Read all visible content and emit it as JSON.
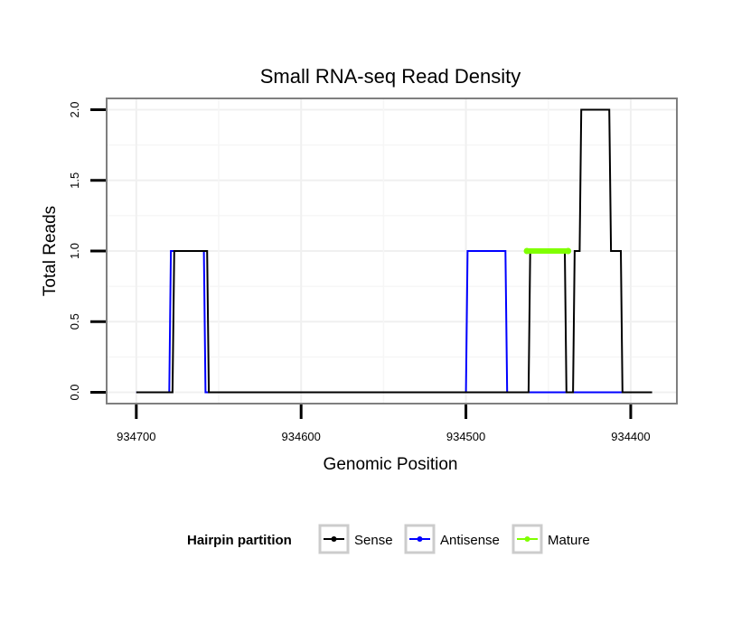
{
  "chart_data": {
    "type": "line",
    "title": "Small RNA-seq Read Density",
    "xlabel": "Genomic Position",
    "ylabel": "Total Reads",
    "xlim": [
      934718,
      934372
    ],
    "ylim": [
      -0.08,
      2.08
    ],
    "x_reversed": true,
    "grid": true,
    "x_ticks": [
      934700,
      934600,
      934500,
      934400
    ],
    "x_tick_labels": [
      "934700",
      "934600",
      "934500",
      "934400"
    ],
    "y_ticks": [
      0,
      0.5,
      1,
      1.5,
      2
    ],
    "y_tick_labels": [
      "0.0",
      "0.5",
      "1.0",
      "1.5",
      "2.0"
    ],
    "legend": {
      "title": "Hairpin partition",
      "position": "bottom",
      "entries": [
        {
          "label": "Sense",
          "color": "#000000"
        },
        {
          "label": "Antisense",
          "color": "#0000ff"
        },
        {
          "label": "Mature",
          "color": "#80ff00"
        }
      ]
    },
    "series": [
      {
        "name": "Antisense",
        "color": "#0000ff",
        "x": [
          934700,
          934680,
          934679,
          934659,
          934658,
          934500,
          934499,
          934476,
          934475,
          934400
        ],
        "y": [
          0,
          0,
          1,
          1,
          0,
          0,
          1,
          1,
          0,
          0
        ]
      },
      {
        "name": "Sense",
        "color": "#000000",
        "x": [
          934700,
          934678,
          934677,
          934657,
          934656,
          934462,
          934461,
          934440,
          934439,
          934435,
          934434,
          934431,
          934430,
          934413,
          934412,
          934406,
          934405,
          934387
        ],
        "y": [
          0,
          0,
          1,
          1,
          0,
          0,
          1,
          1,
          0,
          0,
          1,
          1,
          2,
          2,
          1,
          1,
          0,
          0
        ]
      },
      {
        "name": "Mature",
        "color": "#80ff00",
        "x": [
          934463,
          934438
        ],
        "y": [
          1,
          1
        ]
      }
    ]
  }
}
